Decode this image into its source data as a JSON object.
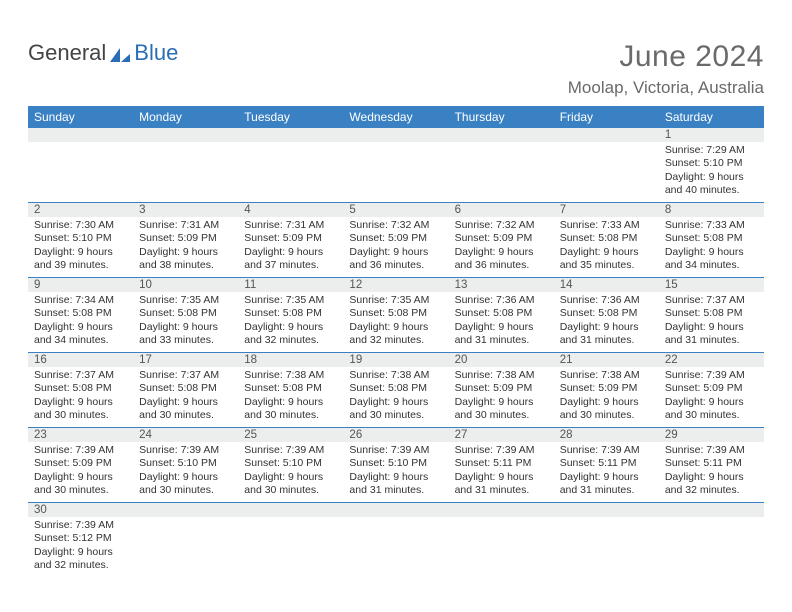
{
  "colors": {
    "header_bg": "#3a81c4",
    "header_text": "#ffffff",
    "daynum_bg": "#eceded",
    "border": "#3a81c4",
    "body_text": "#333333",
    "title_text": "#6a6a6a",
    "logo_blue": "#2a6db5",
    "background": "#ffffff"
  },
  "typography": {
    "title_fontsize": 30,
    "location_fontsize": 17,
    "dayname_fontsize": 12,
    "cell_fontsize": 10.5,
    "daynum_fontsize": 11.5,
    "font_family": "Arial"
  },
  "logo": {
    "general": "General",
    "blue": "Blue"
  },
  "title": "June 2024",
  "location": "Moolap, Victoria, Australia",
  "daynames": [
    "Sunday",
    "Monday",
    "Tuesday",
    "Wednesday",
    "Thursday",
    "Friday",
    "Saturday"
  ],
  "weeks": [
    [
      null,
      null,
      null,
      null,
      null,
      null,
      {
        "n": "1",
        "sr": "Sunrise: 7:29 AM",
        "ss": "Sunset: 5:10 PM",
        "d1": "Daylight: 9 hours",
        "d2": "and 40 minutes."
      }
    ],
    [
      {
        "n": "2",
        "sr": "Sunrise: 7:30 AM",
        "ss": "Sunset: 5:10 PM",
        "d1": "Daylight: 9 hours",
        "d2": "and 39 minutes."
      },
      {
        "n": "3",
        "sr": "Sunrise: 7:31 AM",
        "ss": "Sunset: 5:09 PM",
        "d1": "Daylight: 9 hours",
        "d2": "and 38 minutes."
      },
      {
        "n": "4",
        "sr": "Sunrise: 7:31 AM",
        "ss": "Sunset: 5:09 PM",
        "d1": "Daylight: 9 hours",
        "d2": "and 37 minutes."
      },
      {
        "n": "5",
        "sr": "Sunrise: 7:32 AM",
        "ss": "Sunset: 5:09 PM",
        "d1": "Daylight: 9 hours",
        "d2": "and 36 minutes."
      },
      {
        "n": "6",
        "sr": "Sunrise: 7:32 AM",
        "ss": "Sunset: 5:09 PM",
        "d1": "Daylight: 9 hours",
        "d2": "and 36 minutes."
      },
      {
        "n": "7",
        "sr": "Sunrise: 7:33 AM",
        "ss": "Sunset: 5:08 PM",
        "d1": "Daylight: 9 hours",
        "d2": "and 35 minutes."
      },
      {
        "n": "8",
        "sr": "Sunrise: 7:33 AM",
        "ss": "Sunset: 5:08 PM",
        "d1": "Daylight: 9 hours",
        "d2": "and 34 minutes."
      }
    ],
    [
      {
        "n": "9",
        "sr": "Sunrise: 7:34 AM",
        "ss": "Sunset: 5:08 PM",
        "d1": "Daylight: 9 hours",
        "d2": "and 34 minutes."
      },
      {
        "n": "10",
        "sr": "Sunrise: 7:35 AM",
        "ss": "Sunset: 5:08 PM",
        "d1": "Daylight: 9 hours",
        "d2": "and 33 minutes."
      },
      {
        "n": "11",
        "sr": "Sunrise: 7:35 AM",
        "ss": "Sunset: 5:08 PM",
        "d1": "Daylight: 9 hours",
        "d2": "and 32 minutes."
      },
      {
        "n": "12",
        "sr": "Sunrise: 7:35 AM",
        "ss": "Sunset: 5:08 PM",
        "d1": "Daylight: 9 hours",
        "d2": "and 32 minutes."
      },
      {
        "n": "13",
        "sr": "Sunrise: 7:36 AM",
        "ss": "Sunset: 5:08 PM",
        "d1": "Daylight: 9 hours",
        "d2": "and 31 minutes."
      },
      {
        "n": "14",
        "sr": "Sunrise: 7:36 AM",
        "ss": "Sunset: 5:08 PM",
        "d1": "Daylight: 9 hours",
        "d2": "and 31 minutes."
      },
      {
        "n": "15",
        "sr": "Sunrise: 7:37 AM",
        "ss": "Sunset: 5:08 PM",
        "d1": "Daylight: 9 hours",
        "d2": "and 31 minutes."
      }
    ],
    [
      {
        "n": "16",
        "sr": "Sunrise: 7:37 AM",
        "ss": "Sunset: 5:08 PM",
        "d1": "Daylight: 9 hours",
        "d2": "and 30 minutes."
      },
      {
        "n": "17",
        "sr": "Sunrise: 7:37 AM",
        "ss": "Sunset: 5:08 PM",
        "d1": "Daylight: 9 hours",
        "d2": "and 30 minutes."
      },
      {
        "n": "18",
        "sr": "Sunrise: 7:38 AM",
        "ss": "Sunset: 5:08 PM",
        "d1": "Daylight: 9 hours",
        "d2": "and 30 minutes."
      },
      {
        "n": "19",
        "sr": "Sunrise: 7:38 AM",
        "ss": "Sunset: 5:08 PM",
        "d1": "Daylight: 9 hours",
        "d2": "and 30 minutes."
      },
      {
        "n": "20",
        "sr": "Sunrise: 7:38 AM",
        "ss": "Sunset: 5:09 PM",
        "d1": "Daylight: 9 hours",
        "d2": "and 30 minutes."
      },
      {
        "n": "21",
        "sr": "Sunrise: 7:38 AM",
        "ss": "Sunset: 5:09 PM",
        "d1": "Daylight: 9 hours",
        "d2": "and 30 minutes."
      },
      {
        "n": "22",
        "sr": "Sunrise: 7:39 AM",
        "ss": "Sunset: 5:09 PM",
        "d1": "Daylight: 9 hours",
        "d2": "and 30 minutes."
      }
    ],
    [
      {
        "n": "23",
        "sr": "Sunrise: 7:39 AM",
        "ss": "Sunset: 5:09 PM",
        "d1": "Daylight: 9 hours",
        "d2": "and 30 minutes."
      },
      {
        "n": "24",
        "sr": "Sunrise: 7:39 AM",
        "ss": "Sunset: 5:10 PM",
        "d1": "Daylight: 9 hours",
        "d2": "and 30 minutes."
      },
      {
        "n": "25",
        "sr": "Sunrise: 7:39 AM",
        "ss": "Sunset: 5:10 PM",
        "d1": "Daylight: 9 hours",
        "d2": "and 30 minutes."
      },
      {
        "n": "26",
        "sr": "Sunrise: 7:39 AM",
        "ss": "Sunset: 5:10 PM",
        "d1": "Daylight: 9 hours",
        "d2": "and 31 minutes."
      },
      {
        "n": "27",
        "sr": "Sunrise: 7:39 AM",
        "ss": "Sunset: 5:11 PM",
        "d1": "Daylight: 9 hours",
        "d2": "and 31 minutes."
      },
      {
        "n": "28",
        "sr": "Sunrise: 7:39 AM",
        "ss": "Sunset: 5:11 PM",
        "d1": "Daylight: 9 hours",
        "d2": "and 31 minutes."
      },
      {
        "n": "29",
        "sr": "Sunrise: 7:39 AM",
        "ss": "Sunset: 5:11 PM",
        "d1": "Daylight: 9 hours",
        "d2": "and 32 minutes."
      }
    ],
    [
      {
        "n": "30",
        "sr": "Sunrise: 7:39 AM",
        "ss": "Sunset: 5:12 PM",
        "d1": "Daylight: 9 hours",
        "d2": "and 32 minutes."
      },
      null,
      null,
      null,
      null,
      null,
      null
    ]
  ]
}
